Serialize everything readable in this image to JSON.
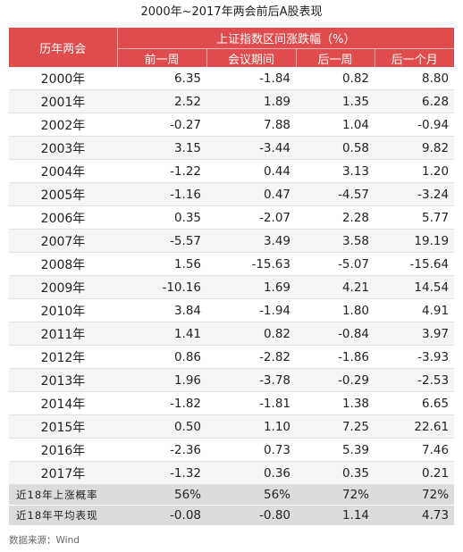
{
  "title": "2000年~2017年两会前后A股表现",
  "source": "数据来源：Wind",
  "chart_data": {
    "type": "table",
    "title": "2000年~2017年两会前后A股表现",
    "header": {
      "row_label": "历年两会",
      "group": "上证指数区间涨跌幅（%）",
      "columns": [
        "前一周",
        "会议期间",
        "后一周",
        "后一个月"
      ]
    },
    "rows": [
      {
        "label": "2000年",
        "values": [
          "6.35",
          "-1.84",
          "0.82",
          "8.80"
        ]
      },
      {
        "label": "2001年",
        "values": [
          "2.52",
          "1.89",
          "1.35",
          "6.28"
        ]
      },
      {
        "label": "2002年",
        "values": [
          "-0.27",
          "7.88",
          "1.04",
          "-0.94"
        ]
      },
      {
        "label": "2003年",
        "values": [
          "3.15",
          "-3.44",
          "0.58",
          "9.82"
        ]
      },
      {
        "label": "2004年",
        "values": [
          "-1.22",
          "0.44",
          "3.13",
          "1.20"
        ]
      },
      {
        "label": "2005年",
        "values": [
          "-1.16",
          "0.47",
          "-4.57",
          "-3.24"
        ]
      },
      {
        "label": "2006年",
        "values": [
          "0.35",
          "-2.07",
          "2.28",
          "5.77"
        ]
      },
      {
        "label": "2007年",
        "values": [
          "-5.57",
          "3.49",
          "3.58",
          "19.19"
        ]
      },
      {
        "label": "2008年",
        "values": [
          "1.56",
          "-15.63",
          "-5.07",
          "-15.64"
        ]
      },
      {
        "label": "2009年",
        "values": [
          "-10.16",
          "1.69",
          "4.21",
          "14.54"
        ]
      },
      {
        "label": "2010年",
        "values": [
          "3.84",
          "-1.94",
          "1.80",
          "4.91"
        ]
      },
      {
        "label": "2011年",
        "values": [
          "1.41",
          "0.82",
          "-0.84",
          "3.97"
        ]
      },
      {
        "label": "2012年",
        "values": [
          "0.86",
          "-2.82",
          "-1.86",
          "-3.93"
        ]
      },
      {
        "label": "2013年",
        "values": [
          "1.96",
          "-3.78",
          "-0.29",
          "-2.53"
        ]
      },
      {
        "label": "2014年",
        "values": [
          "-1.82",
          "-1.81",
          "1.38",
          "6.65"
        ]
      },
      {
        "label": "2015年",
        "values": [
          "0.50",
          "1.10",
          "7.25",
          "22.61"
        ]
      },
      {
        "label": "2016年",
        "values": [
          "-2.36",
          "0.73",
          "5.39",
          "7.46"
        ]
      },
      {
        "label": "2017年",
        "values": [
          "-1.32",
          "0.36",
          "0.35",
          "0.21"
        ]
      }
    ],
    "summary": [
      {
        "label": "近18年上涨概率",
        "values": [
          "56%",
          "56%",
          "72%",
          "72%"
        ]
      },
      {
        "label": "近18年平均表现",
        "values": [
          "-0.08",
          "-0.80",
          "1.14",
          "4.73"
        ]
      }
    ]
  }
}
